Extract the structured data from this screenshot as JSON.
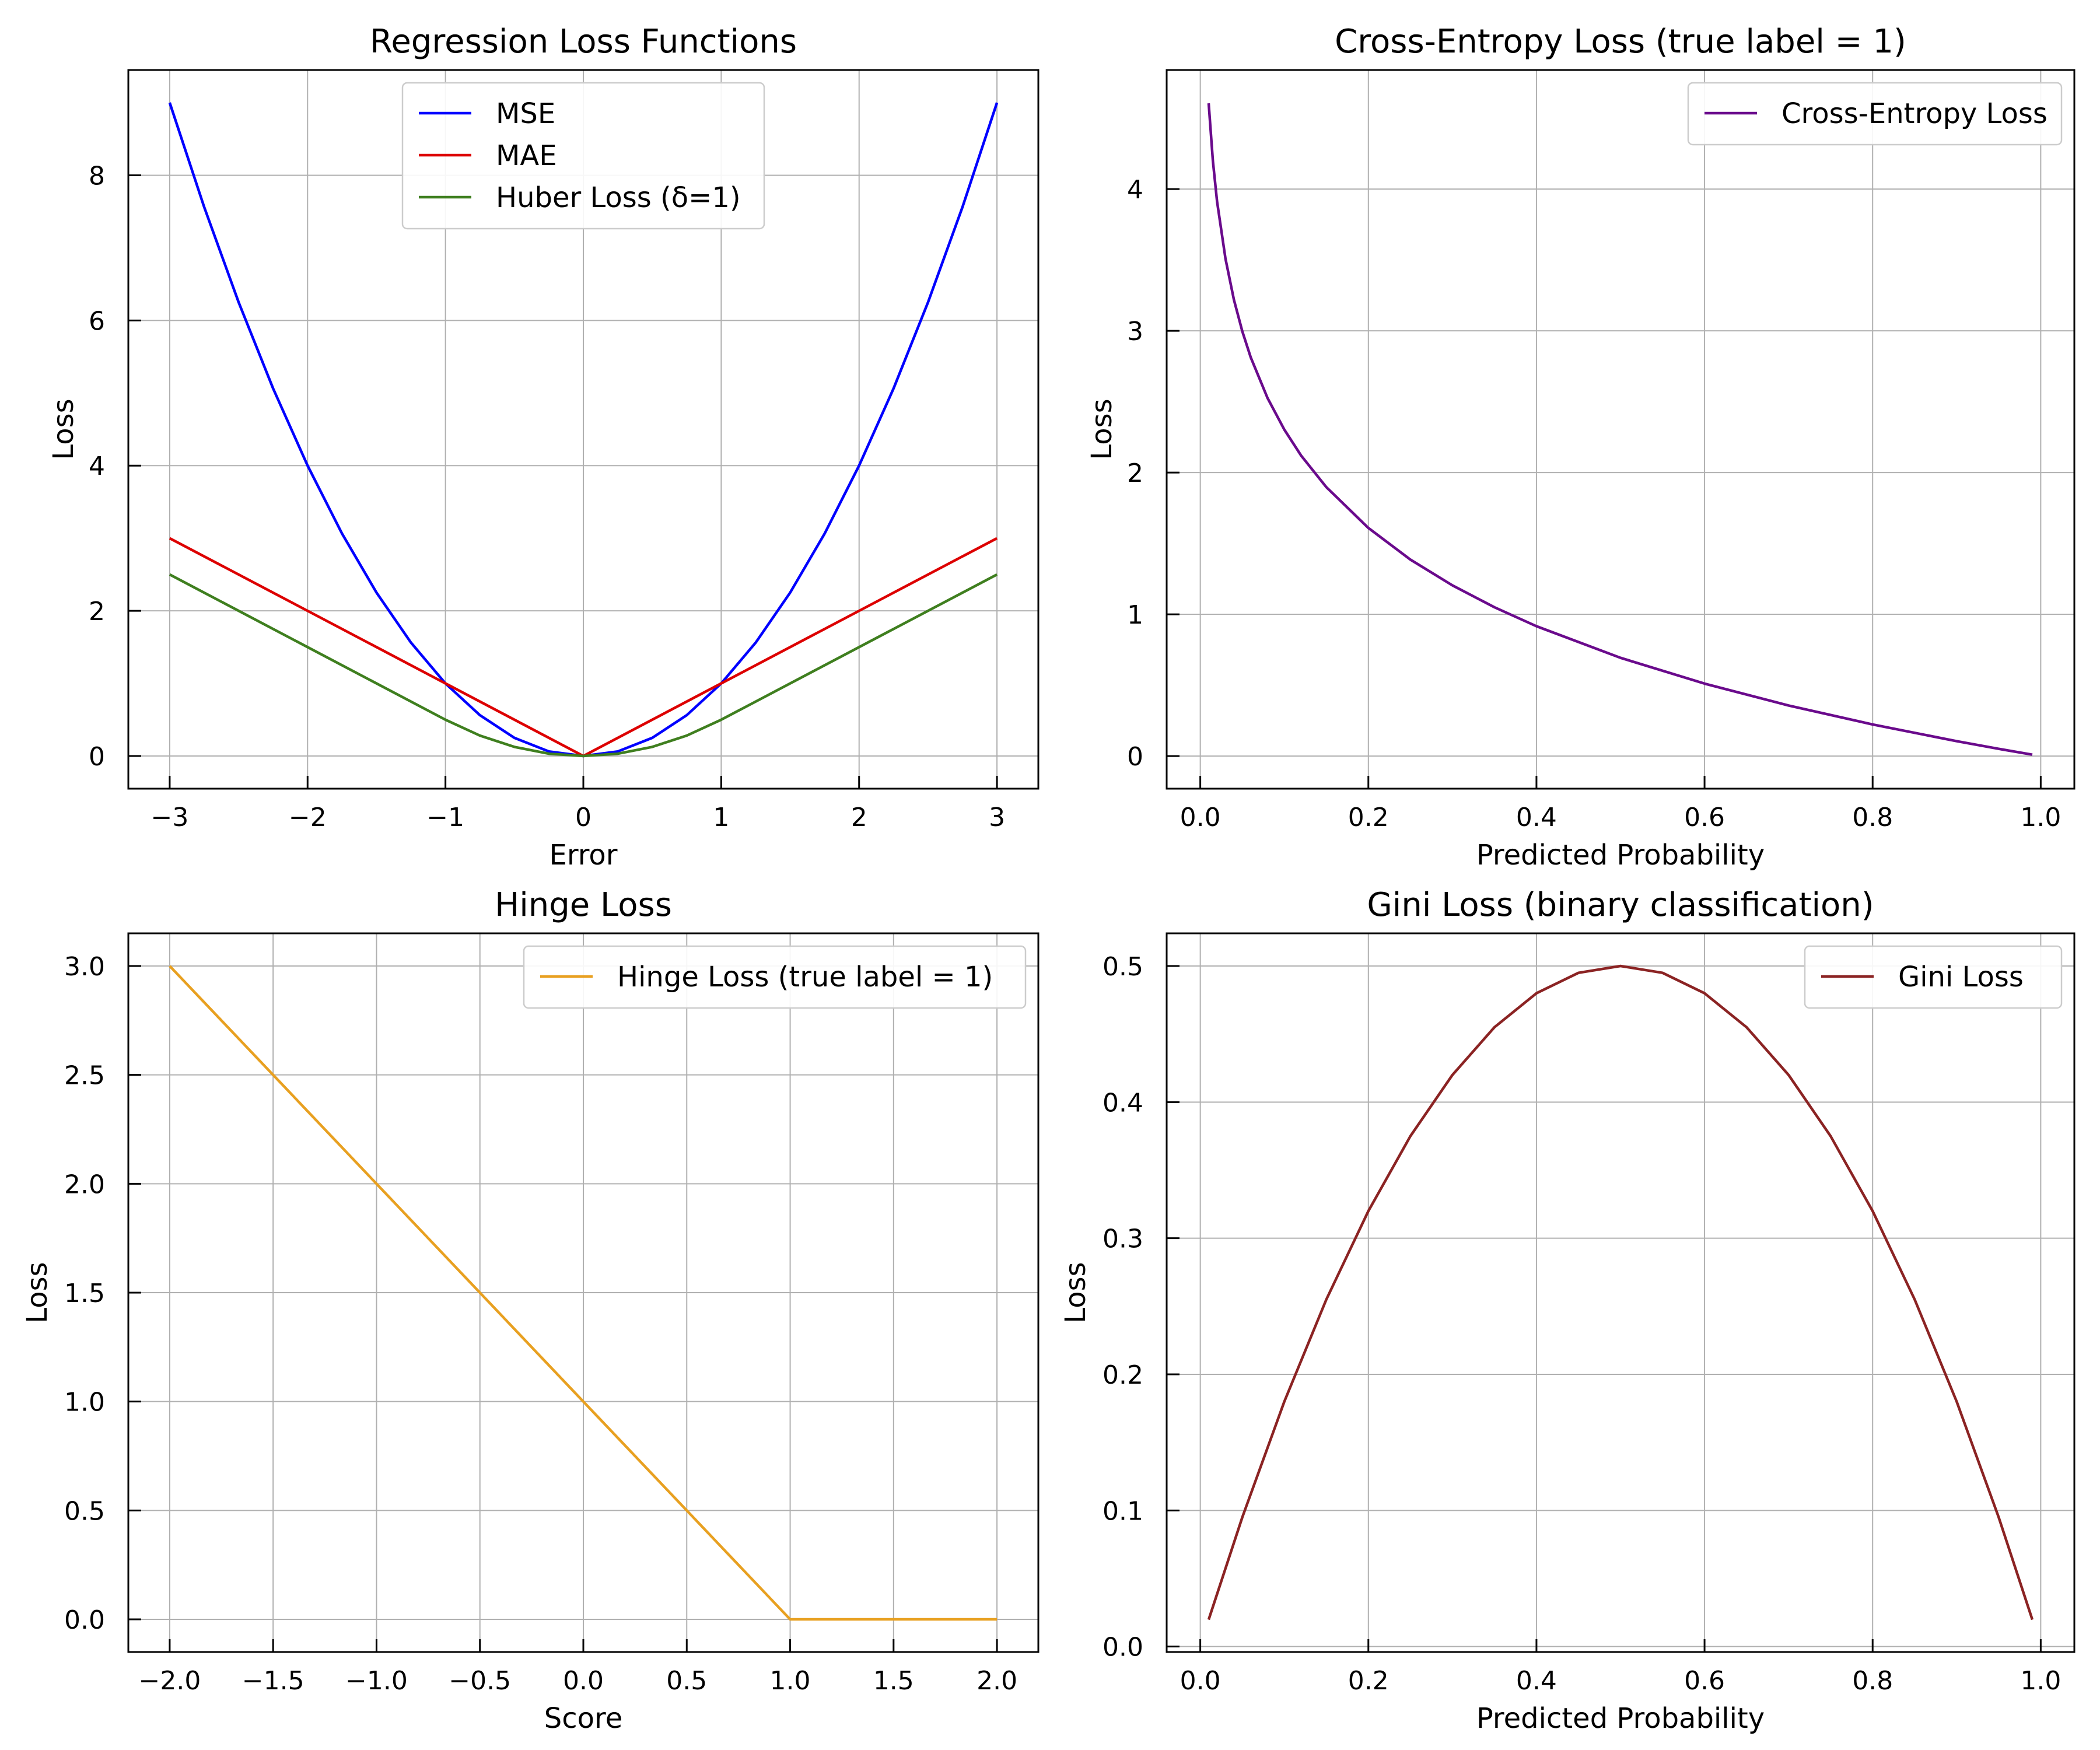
{
  "chart_data": [
    {
      "type": "line",
      "title": "Regression Loss Functions",
      "xlabel": "Error",
      "ylabel": "Loss",
      "xlim": [
        -3.3,
        3.3
      ],
      "ylim": [
        -0.45,
        9.45
      ],
      "xticks": [
        -3,
        -2,
        -1,
        0,
        1,
        2,
        3
      ],
      "xtick_labels": [
        "−3",
        "−2",
        "−1",
        "0",
        "1",
        "2",
        "3"
      ],
      "yticks": [
        0,
        2,
        4,
        6,
        8
      ],
      "ytick_labels": [
        "0",
        "2",
        "4",
        "6",
        "8"
      ],
      "grid": true,
      "legend_position": "top-center",
      "series": [
        {
          "name": "MSE",
          "color": "#0000ff",
          "x": [
            -3,
            -2.75,
            -2.5,
            -2.25,
            -2,
            -1.75,
            -1.5,
            -1.25,
            -1,
            -0.75,
            -0.5,
            -0.25,
            0,
            0.25,
            0.5,
            0.75,
            1,
            1.25,
            1.5,
            1.75,
            2,
            2.25,
            2.5,
            2.75,
            3
          ],
          "y": [
            9,
            7.5625,
            6.25,
            5.0625,
            4,
            3.0625,
            2.25,
            1.5625,
            1,
            0.5625,
            0.25,
            0.0625,
            0,
            0.0625,
            0.25,
            0.5625,
            1,
            1.5625,
            2.25,
            3.0625,
            4,
            5.0625,
            6.25,
            7.5625,
            9
          ]
        },
        {
          "name": "MAE",
          "color": "#dd0000",
          "x": [
            -3,
            0,
            3
          ],
          "y": [
            3,
            0,
            3
          ]
        },
        {
          "name": "Huber Loss (δ=1)",
          "color": "#3f7f1f",
          "x": [
            -3,
            -1,
            -0.75,
            -0.5,
            -0.25,
            0,
            0.25,
            0.5,
            0.75,
            1,
            3
          ],
          "y": [
            2.5,
            0.5,
            0.28125,
            0.125,
            0.03125,
            0,
            0.03125,
            0.125,
            0.28125,
            0.5,
            2.5
          ]
        }
      ]
    },
    {
      "type": "line",
      "title": "Cross-Entropy Loss (true label = 1)",
      "xlabel": "Predicted Probability",
      "ylabel": "Loss",
      "xlim": [
        -0.04,
        1.04
      ],
      "ylim": [
        -0.23,
        4.84
      ],
      "xticks": [
        0,
        0.2,
        0.4,
        0.6,
        0.8,
        1
      ],
      "xtick_labels": [
        "0.0",
        "0.2",
        "0.4",
        "0.6",
        "0.8",
        "1.0"
      ],
      "yticks": [
        0,
        1,
        2,
        3,
        4
      ],
      "ytick_labels": [
        "0",
        "1",
        "2",
        "3",
        "4"
      ],
      "grid": true,
      "legend_position": "top-right",
      "series": [
        {
          "name": "Cross-Entropy Loss",
          "color": "#6a0a8c",
          "x": [
            0.01,
            0.015,
            0.02,
            0.03,
            0.04,
            0.05,
            0.06,
            0.08,
            0.1,
            0.12,
            0.15,
            0.2,
            0.25,
            0.3,
            0.35,
            0.4,
            0.5,
            0.6,
            0.7,
            0.8,
            0.9,
            0.95,
            0.99
          ],
          "y": [
            4.605,
            4.2,
            3.912,
            3.507,
            3.219,
            2.996,
            2.813,
            2.526,
            2.303,
            2.12,
            1.897,
            1.609,
            1.386,
            1.204,
            1.05,
            0.916,
            0.693,
            0.511,
            0.357,
            0.223,
            0.105,
            0.051,
            0.01
          ]
        }
      ]
    },
    {
      "type": "line",
      "title": "Hinge Loss",
      "xlabel": "Score",
      "ylabel": "Loss",
      "xlim": [
        -2.2,
        2.2
      ],
      "ylim": [
        -0.15,
        3.15
      ],
      "xticks": [
        -2,
        -1.5,
        -1,
        -0.5,
        0,
        0.5,
        1,
        1.5,
        2
      ],
      "xtick_labels": [
        "−2.0",
        "−1.5",
        "−1.0",
        "−0.5",
        "0.0",
        "0.5",
        "1.0",
        "1.5",
        "2.0"
      ],
      "yticks": [
        0,
        0.5,
        1,
        1.5,
        2,
        2.5,
        3
      ],
      "ytick_labels": [
        "0.0",
        "0.5",
        "1.0",
        "1.5",
        "2.0",
        "2.5",
        "3.0"
      ],
      "grid": true,
      "legend_position": "top-right",
      "series": [
        {
          "name": "Hinge Loss (true label = 1)",
          "color": "#e8a020",
          "x": [
            -2,
            1,
            2
          ],
          "y": [
            3,
            0,
            0
          ]
        }
      ]
    },
    {
      "type": "line",
      "title": "Gini Loss (binary classification)",
      "xlabel": "Predicted Probability",
      "ylabel": "Loss",
      "xlim": [
        -0.04,
        1.04
      ],
      "ylim": [
        -0.004,
        0.524
      ],
      "xticks": [
        0,
        0.2,
        0.4,
        0.6,
        0.8,
        1
      ],
      "xtick_labels": [
        "0.0",
        "0.2",
        "0.4",
        "0.6",
        "0.8",
        "1.0"
      ],
      "yticks": [
        0,
        0.1,
        0.2,
        0.3,
        0.4,
        0.5
      ],
      "ytick_labels": [
        "0.0",
        "0.1",
        "0.2",
        "0.3",
        "0.4",
        "0.5"
      ],
      "grid": true,
      "legend_position": "top-right",
      "series": [
        {
          "name": "Gini Loss",
          "color": "#8b2323",
          "x": [
            0.01,
            0.05,
            0.1,
            0.15,
            0.2,
            0.25,
            0.3,
            0.35,
            0.4,
            0.45,
            0.5,
            0.55,
            0.6,
            0.65,
            0.7,
            0.75,
            0.8,
            0.85,
            0.9,
            0.95,
            0.99
          ],
          "y": [
            0.0198,
            0.095,
            0.18,
            0.255,
            0.32,
            0.375,
            0.42,
            0.455,
            0.48,
            0.495,
            0.5,
            0.495,
            0.48,
            0.455,
            0.42,
            0.375,
            0.32,
            0.255,
            0.18,
            0.095,
            0.0198
          ]
        }
      ]
    }
  ]
}
